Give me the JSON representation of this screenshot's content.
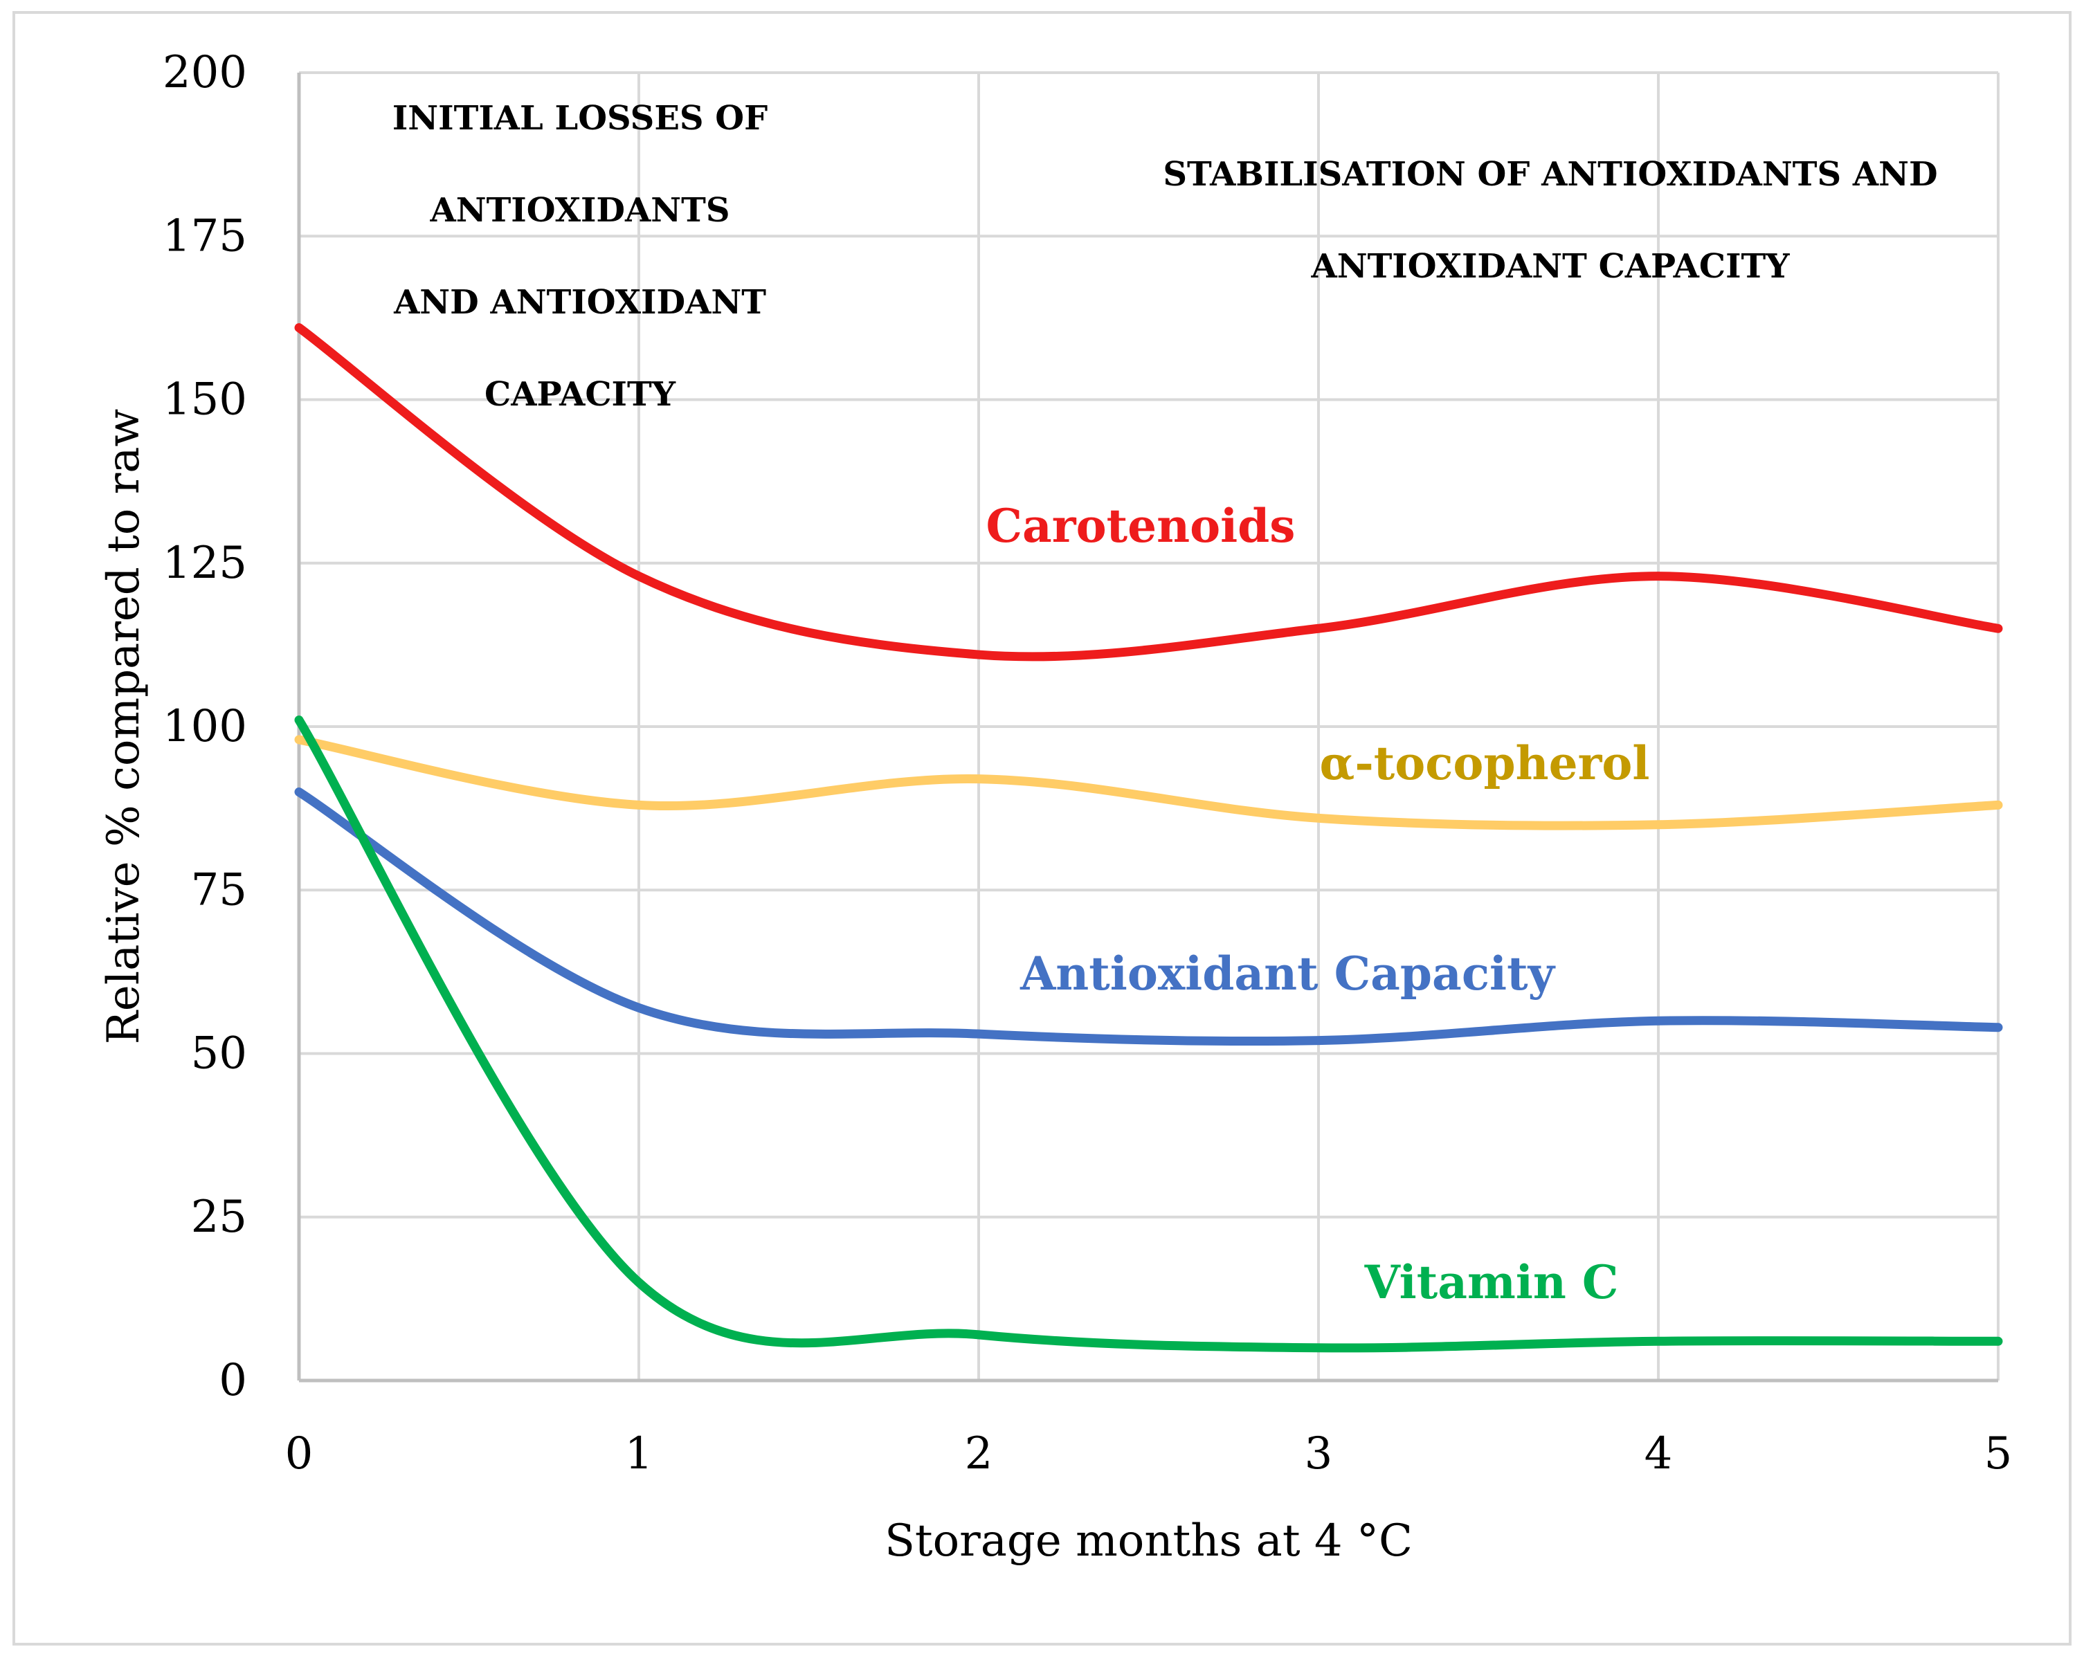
{
  "chart_data": {
    "type": "line",
    "title": "",
    "xlabel": "Storage months at 4 °C",
    "ylabel": "Relative % compared to raw",
    "x": [
      0,
      1,
      2,
      3,
      4,
      5
    ],
    "xlim": [
      0,
      5
    ],
    "ylim": [
      0,
      200
    ],
    "xticks": [
      "0",
      "1",
      "2",
      "3",
      "4",
      "5"
    ],
    "yticks": [
      "0",
      "25",
      "50",
      "75",
      "100",
      "125",
      "150",
      "175",
      "200"
    ],
    "grid": true,
    "smooth": true,
    "series": [
      {
        "name": "Carotenoids",
        "color": "#ee1c1c",
        "values": [
          161,
          123,
          111,
          115,
          123,
          115
        ]
      },
      {
        "name": "α-tocopherol",
        "color": "#ffcc66",
        "label_color": "#c49a00",
        "values": [
          98,
          88,
          92,
          86,
          85,
          88
        ]
      },
      {
        "name": "Antioxidant Capacity",
        "color": "#4472c4",
        "values": [
          90,
          57,
          53,
          52,
          55,
          54
        ]
      },
      {
        "name": "Vitamin C",
        "color": "#00b050",
        "values": [
          101,
          15,
          7,
          5,
          6,
          6
        ]
      }
    ],
    "annotations": [
      {
        "lines": [
          "INITIAL LOSSES OF",
          "ANTIOXIDANTS",
          "AND ANTIOXIDANT",
          "CAPACITY"
        ]
      },
      {
        "lines": [
          "STABILISATION OF ANTIOXIDANTS AND",
          "ANTIOXIDANT CAPACITY"
        ]
      }
    ]
  }
}
